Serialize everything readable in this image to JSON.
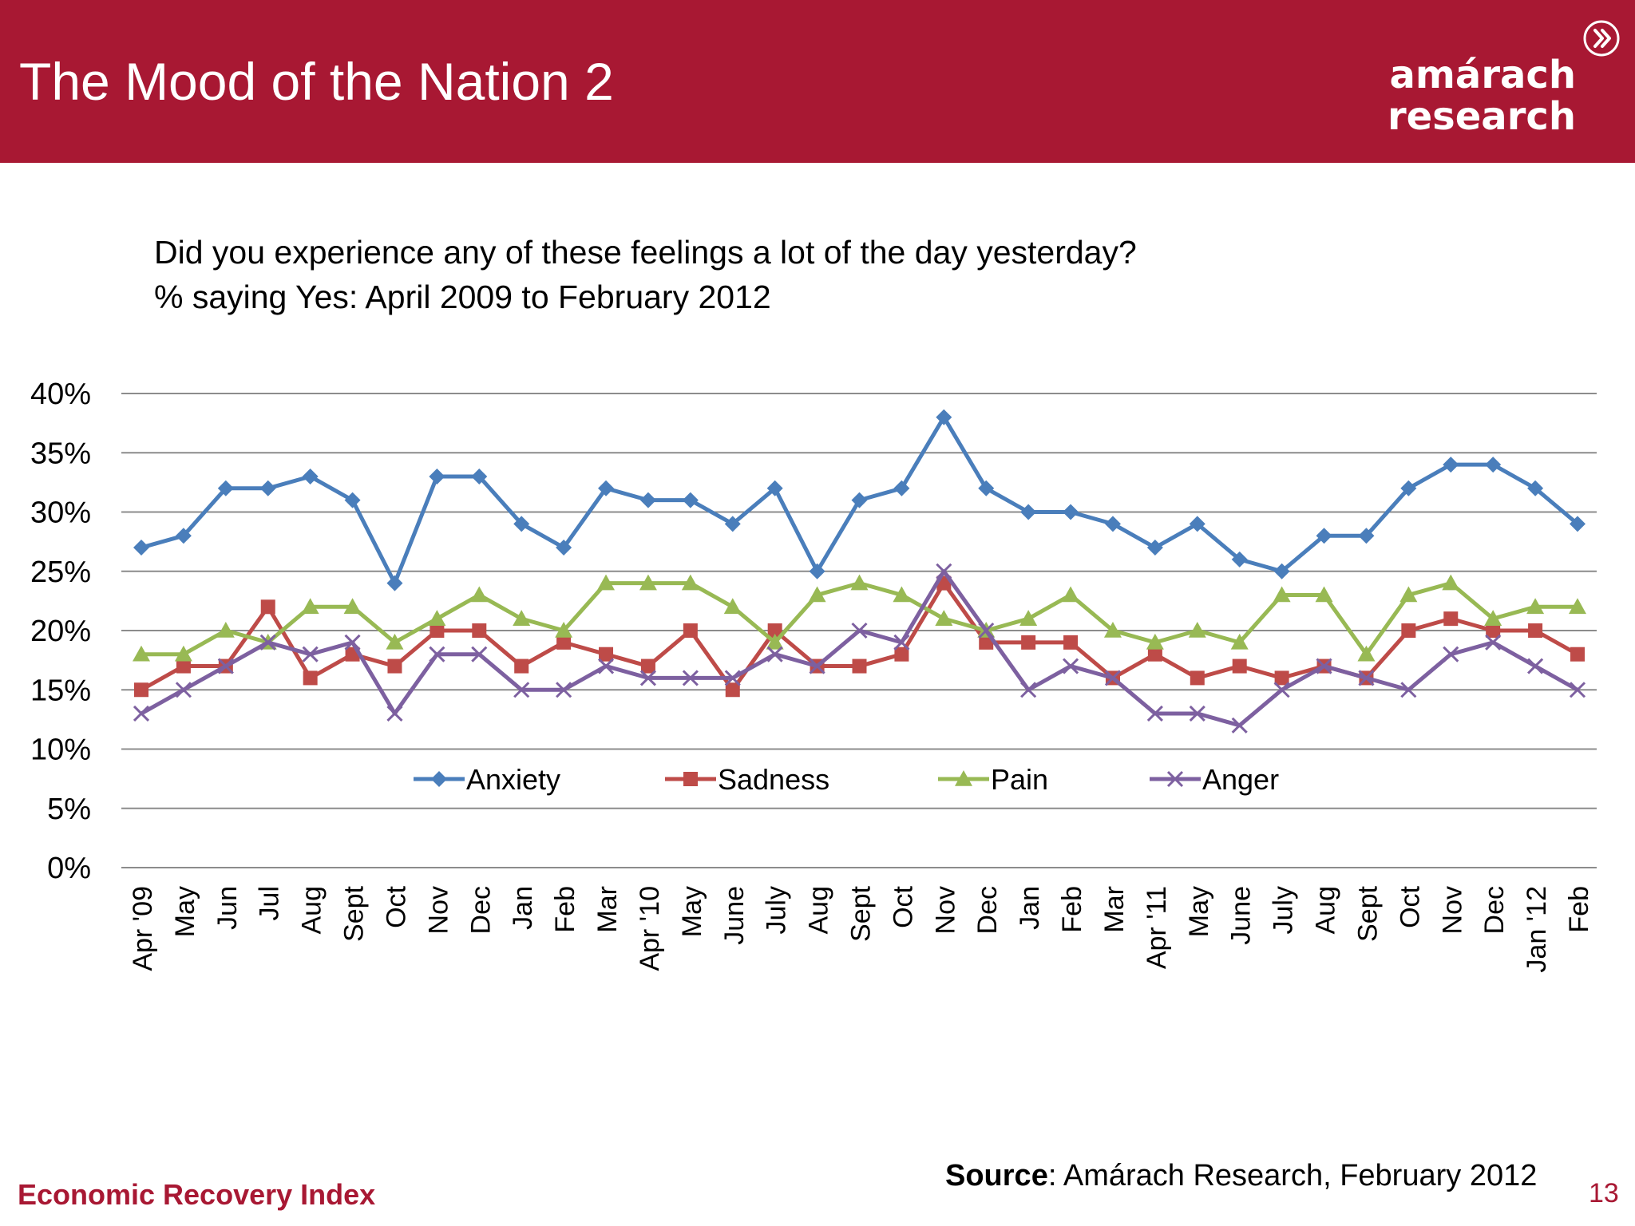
{
  "slide": {
    "title": "The Mood of the Nation 2",
    "question": "Did you experience any of these feelings a lot of the day yesterday?",
    "subtitle": "% saying Yes: April 2009 to February 2012"
  },
  "logo": {
    "line1": "amárach",
    "line2": "research",
    "icon": "chevron-circle-icon"
  },
  "footer": {
    "left": "Economic Recovery Index",
    "source_label": "Source",
    "source_text": ": Amárach Research, February 2012",
    "page_number": "13"
  },
  "colors": {
    "header_bg": "#a81833",
    "anxiety": "#4a7ebb",
    "sadness": "#be4b48",
    "pain": "#98b954",
    "anger": "#7d60a0",
    "grid": "#8c8c8c"
  },
  "chart_data": {
    "type": "line",
    "title": "",
    "xlabel": "",
    "ylabel": "",
    "ylim": [
      0,
      40
    ],
    "y_ticks": [
      0,
      5,
      10,
      15,
      20,
      25,
      30,
      35,
      40
    ],
    "y_tick_labels": [
      "0%",
      "5%",
      "10%",
      "15%",
      "20%",
      "25%",
      "30%",
      "35%",
      "40%"
    ],
    "grid": true,
    "legend_position": "inside-lower-center",
    "categories": [
      "Apr '09",
      "May",
      "Jun",
      "Jul",
      "Aug",
      "Sept",
      "Oct",
      "Nov",
      "Dec",
      "Jan",
      "Feb",
      "Mar",
      "Apr '10",
      "May",
      "June",
      "July",
      "Aug",
      "Sept",
      "Oct",
      "Nov",
      "Dec",
      "Jan",
      "Feb",
      "Mar",
      "Apr '11",
      "May",
      "June",
      "July",
      "Aug",
      "Sept",
      "Oct",
      "Nov",
      "Dec",
      "Jan '12",
      "Feb"
    ],
    "series": [
      {
        "name": "Anxiety",
        "marker": "diamond",
        "values": [
          27,
          28,
          32,
          32,
          33,
          31,
          24,
          33,
          33,
          29,
          27,
          32,
          31,
          31,
          29,
          32,
          25,
          31,
          32,
          38,
          32,
          30,
          30,
          29,
          27,
          29,
          26,
          25,
          28,
          28,
          32,
          34,
          34,
          32,
          29
        ]
      },
      {
        "name": "Sadness",
        "marker": "square",
        "values": [
          15,
          17,
          17,
          22,
          16,
          18,
          17,
          20,
          20,
          17,
          19,
          18,
          17,
          20,
          15,
          20,
          17,
          17,
          18,
          24,
          19,
          19,
          19,
          16,
          18,
          16,
          17,
          16,
          17,
          16,
          20,
          21,
          20,
          20,
          18
        ]
      },
      {
        "name": "Pain",
        "marker": "triangle",
        "values": [
          18,
          18,
          20,
          19,
          22,
          22,
          19,
          21,
          23,
          21,
          20,
          24,
          24,
          24,
          22,
          19,
          23,
          24,
          23,
          21,
          20,
          21,
          23,
          20,
          19,
          20,
          19,
          23,
          23,
          18,
          23,
          24,
          21,
          22,
          22
        ]
      },
      {
        "name": "Anger",
        "marker": "x",
        "values": [
          13,
          15,
          17,
          19,
          18,
          19,
          13,
          18,
          18,
          15,
          15,
          17,
          16,
          16,
          16,
          18,
          17,
          20,
          19,
          25,
          20,
          15,
          17,
          16,
          13,
          13,
          12,
          15,
          17,
          16,
          15,
          18,
          19,
          17,
          15
        ]
      }
    ]
  }
}
